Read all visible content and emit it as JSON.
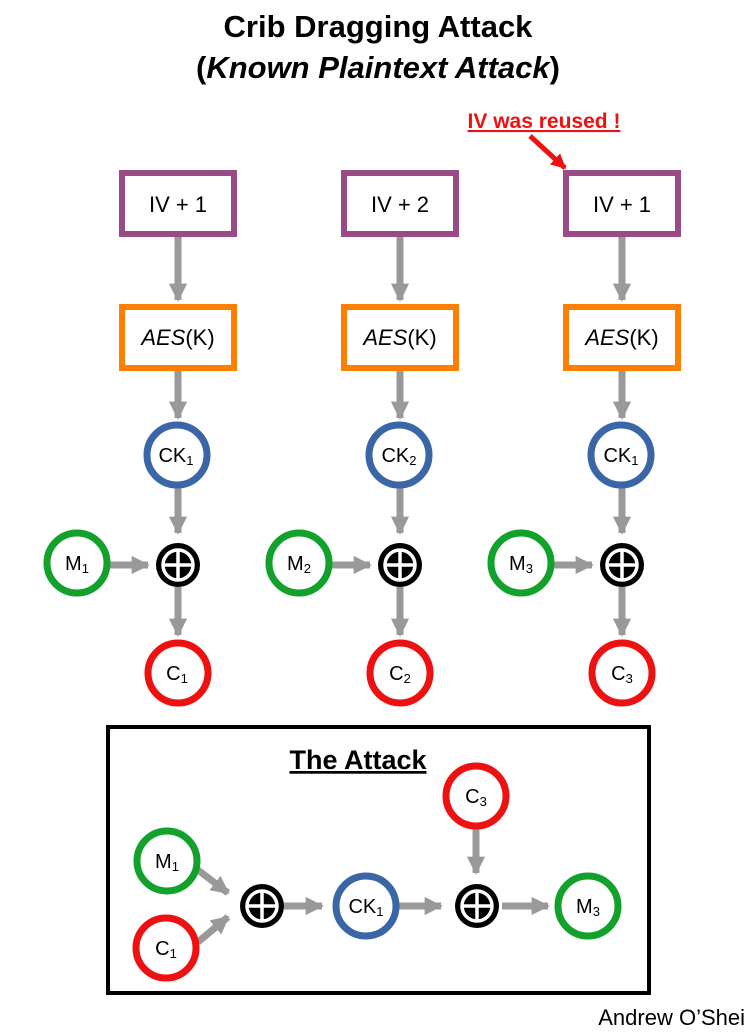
{
  "title": {
    "line1": "Crib Dragging Attack",
    "line2_open": "(",
    "line2_italic": "Known Plaintext Attack",
    "line2_close": ")"
  },
  "warning": "IV was reused !",
  "columns": [
    {
      "iv": "IV + 1",
      "aes": {
        "italic": "AES",
        "rest": "(K)"
      },
      "key": {
        "base": "CK",
        "sub": "1"
      },
      "message": {
        "base": "M",
        "sub": "1"
      },
      "cipher": {
        "base": "C",
        "sub": "1"
      }
    },
    {
      "iv": "IV + 2",
      "aes": {
        "italic": "AES",
        "rest": "(K)"
      },
      "key": {
        "base": "CK",
        "sub": "2"
      },
      "message": {
        "base": "M",
        "sub": "2"
      },
      "cipher": {
        "base": "C",
        "sub": "2"
      }
    },
    {
      "iv": "IV + 1",
      "aes": {
        "italic": "AES",
        "rest": "(K)"
      },
      "key": {
        "base": "CK",
        "sub": "1"
      },
      "message": {
        "base": "M",
        "sub": "3"
      },
      "cipher": {
        "base": "C",
        "sub": "3"
      }
    }
  ],
  "attack": {
    "title": "The Attack",
    "m_in": {
      "base": "M",
      "sub": "1"
    },
    "c_in": {
      "base": "C",
      "sub": "1"
    },
    "key": {
      "base": "CK",
      "sub": "1"
    },
    "c_top": {
      "base": "C",
      "sub": "3"
    },
    "m_out": {
      "base": "M",
      "sub": "3"
    }
  },
  "author": "Andrew O’Shei",
  "colors": {
    "iv_box": "#9a4a85",
    "aes_box": "#ff8000",
    "key_circle": "#3a66a8",
    "message_circle": "#12a12a",
    "cipher_circle": "#ee1111",
    "xor": "#000000",
    "arrow": "#999999",
    "warning": "#ee1111"
  }
}
